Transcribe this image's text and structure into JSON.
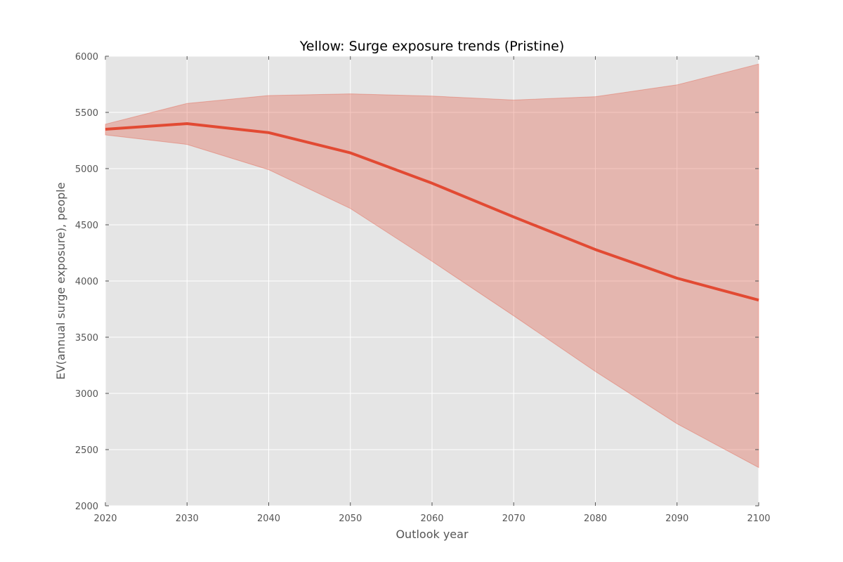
{
  "colors": {
    "plot_background": "#e5e5e5",
    "grid": "#ffffff",
    "series_line": "#e24a33",
    "band_fill": "#e24a33",
    "axis_text": "#555555",
    "title_text": "#000000"
  },
  "chart_data": {
    "type": "line",
    "title": "Yellow: Surge exposure trends (Pristine)",
    "xlabel": "Outlook year",
    "ylabel": "EV(annual surge exposure), people",
    "xlim": [
      2020,
      2100
    ],
    "ylim": [
      2000,
      6000
    ],
    "x_ticks": [
      "2020",
      "2030",
      "2040",
      "2050",
      "2060",
      "2070",
      "2080",
      "2090",
      "2100"
    ],
    "y_ticks": [
      "2000",
      "2500",
      "3000",
      "3500",
      "4000",
      "4500",
      "5000",
      "5500",
      "6000"
    ],
    "grid": true,
    "x": [
      2020,
      2030,
      2040,
      2050,
      2060,
      2070,
      2080,
      2090,
      2100
    ],
    "series": [
      {
        "values": [
          5350,
          5400,
          5320,
          5140,
          4870,
          4570,
          4280,
          4025,
          3830
        ],
        "band_upper": [
          5395,
          5580,
          5650,
          5665,
          5645,
          5610,
          5640,
          5745,
          5930
        ],
        "band_lower": [
          5300,
          5215,
          4990,
          4645,
          4175,
          3690,
          3195,
          2730,
          2340
        ]
      }
    ]
  }
}
